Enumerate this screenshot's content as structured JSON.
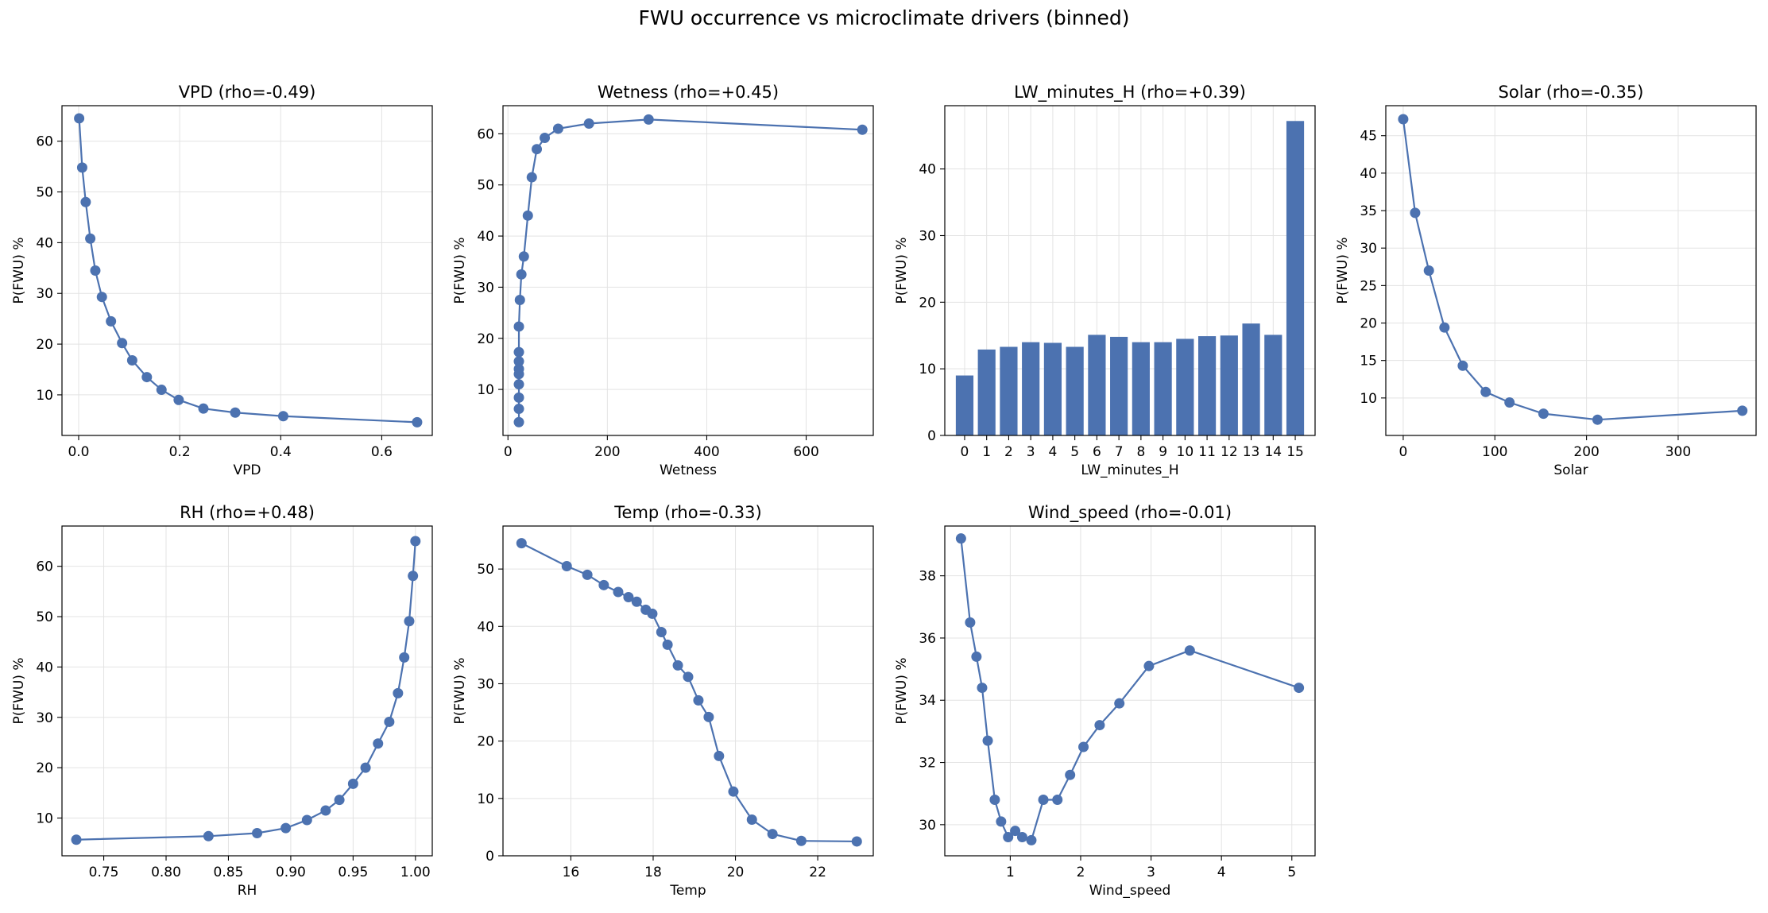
{
  "figure_title": "FWU occurrence vs microclimate drivers (binned)",
  "colors": {
    "series": "#4c72b0",
    "grid": "#e3e3e3",
    "axis": "#000000"
  },
  "chart_data": [
    {
      "type": "line",
      "title": "VPD (rho=-0.49)",
      "xlabel": "VPD",
      "ylabel": "P(FWU) %",
      "xlim": [
        -0.033,
        0.7
      ],
      "ylim": [
        2.0,
        67.0
      ],
      "xticks": [
        0.0,
        0.2,
        0.4,
        0.6
      ],
      "xtick_labels": [
        "0.0",
        "0.2",
        "0.4",
        "0.6"
      ],
      "yticks": [
        10,
        20,
        30,
        40,
        50,
        60
      ],
      "ytick_labels": [
        "10",
        "20",
        "30",
        "40",
        "50",
        "60"
      ],
      "grid": true,
      "x": [
        0.001,
        0.007,
        0.014,
        0.023,
        0.033,
        0.046,
        0.064,
        0.086,
        0.106,
        0.135,
        0.164,
        0.198,
        0.247,
        0.31,
        0.405,
        0.67
      ],
      "y": [
        64.5,
        54.8,
        48.0,
        40.8,
        34.5,
        29.3,
        24.5,
        20.2,
        16.8,
        13.5,
        11.0,
        9.0,
        7.3,
        6.5,
        5.8,
        4.6
      ]
    },
    {
      "type": "line",
      "title": "Wetness (rho=+0.45)",
      "xlabel": "Wetness",
      "ylabel": "P(FWU) %",
      "xlim": [
        -10,
        735
      ],
      "ylim": [
        1.0,
        65.5
      ],
      "xticks": [
        0,
        200,
        400,
        600
      ],
      "xtick_labels": [
        "0",
        "200",
        "400",
        "600"
      ],
      "yticks": [
        10,
        20,
        30,
        40,
        50,
        60
      ],
      "ytick_labels": [
        "10",
        "20",
        "30",
        "40",
        "50",
        "60"
      ],
      "grid": true,
      "x": [
        22,
        22,
        22,
        22,
        22,
        22,
        22,
        22,
        22,
        24,
        27,
        32,
        40,
        48,
        58,
        74,
        101,
        163,
        283,
        713
      ],
      "y": [
        3.6,
        6.2,
        8.4,
        11.0,
        13.0,
        14.0,
        15.5,
        17.3,
        22.3,
        27.5,
        32.5,
        36.0,
        44.0,
        51.5,
        57.0,
        59.2,
        61.0,
        62.0,
        62.8,
        60.8
      ]
    },
    {
      "type": "bar",
      "title": "LW_minutes_H (rho=+0.39)",
      "xlabel": "LW_minutes_H",
      "ylabel": "P(FWU) %",
      "xlim": [
        -0.9,
        15.9
      ],
      "ylim": [
        0,
        49.5
      ],
      "categories": [
        "0",
        "1",
        "2",
        "3",
        "4",
        "5",
        "6",
        "7",
        "8",
        "9",
        "10",
        "11",
        "12",
        "13",
        "14",
        "15"
      ],
      "xticks": [
        0,
        1,
        2,
        3,
        4,
        5,
        6,
        7,
        8,
        9,
        10,
        11,
        12,
        13,
        14,
        15
      ],
      "xtick_labels": [
        "0",
        "1",
        "2",
        "3",
        "4",
        "5",
        "6",
        "7",
        "8",
        "9",
        "10",
        "11",
        "12",
        "13",
        "14",
        "15"
      ],
      "yticks": [
        0,
        10,
        20,
        30,
        40
      ],
      "ytick_labels": [
        "0",
        "10",
        "20",
        "30",
        "40"
      ],
      "grid": true,
      "values": [
        9.0,
        12.9,
        13.3,
        14.0,
        13.9,
        13.3,
        15.1,
        14.8,
        14.0,
        14.0,
        14.5,
        14.9,
        15.0,
        16.8,
        15.1,
        47.2
      ]
    },
    {
      "type": "line",
      "title": "Solar (rho=-0.35)",
      "xlabel": "Solar",
      "ylabel": "P(FWU) %",
      "xlim": [
        -19,
        385
      ],
      "ylim": [
        5.0,
        49.0
      ],
      "xticks": [
        0,
        100,
        200,
        300
      ],
      "xtick_labels": [
        "0",
        "100",
        "200",
        "300"
      ],
      "yticks": [
        10,
        15,
        20,
        25,
        30,
        35,
        40,
        45
      ],
      "ytick_labels": [
        "10",
        "15",
        "20",
        "25",
        "30",
        "35",
        "40",
        "45"
      ],
      "grid": true,
      "x": [
        0,
        13,
        28,
        45,
        65,
        90,
        116,
        153,
        212,
        370
      ],
      "y": [
        47.2,
        34.7,
        27.0,
        19.4,
        14.3,
        10.8,
        9.4,
        7.9,
        7.1,
        8.3
      ]
    },
    {
      "type": "line",
      "title": "RH (rho=+0.48)",
      "xlabel": "RH",
      "ylabel": "P(FWU) %",
      "xlim": [
        0.7165,
        1.0135
      ],
      "ylim": [
        2.5,
        68.0
      ],
      "xticks": [
        0.75,
        0.8,
        0.85,
        0.9,
        0.95,
        1.0
      ],
      "xtick_labels": [
        "0.75",
        "0.80",
        "0.85",
        "0.90",
        "0.95",
        "1.00"
      ],
      "yticks": [
        10,
        20,
        30,
        40,
        50,
        60
      ],
      "ytick_labels": [
        "10",
        "20",
        "30",
        "40",
        "50",
        "60"
      ],
      "grid": true,
      "x": [
        0.728,
        0.834,
        0.873,
        0.896,
        0.913,
        0.928,
        0.939,
        0.95,
        0.96,
        0.97,
        0.979,
        0.986,
        0.991,
        0.995,
        0.998,
        1.0
      ],
      "y": [
        5.7,
        6.4,
        7.0,
        8.0,
        9.6,
        11.5,
        13.6,
        16.8,
        20.0,
        24.8,
        29.1,
        34.8,
        41.9,
        49.1,
        58.1,
        65.0
      ]
    },
    {
      "type": "line",
      "title": "Temp (rho=-0.33)",
      "xlabel": "Temp",
      "ylabel": "P(FWU) %",
      "xlim": [
        14.35,
        23.35
      ],
      "ylim": [
        0,
        57.5
      ],
      "xticks": [
        16,
        18,
        20,
        22
      ],
      "xtick_labels": [
        "16",
        "18",
        "20",
        "22"
      ],
      "yticks": [
        0,
        10,
        20,
        30,
        40,
        50
      ],
      "ytick_labels": [
        "0",
        "10",
        "20",
        "30",
        "40",
        "50"
      ],
      "grid": true,
      "x": [
        14.8,
        15.9,
        16.4,
        16.8,
        17.15,
        17.4,
        17.6,
        17.82,
        17.98,
        18.2,
        18.35,
        18.6,
        18.85,
        19.1,
        19.35,
        19.6,
        19.95,
        20.4,
        20.9,
        21.6,
        22.95
      ],
      "y": [
        54.5,
        50.5,
        49.0,
        47.2,
        46.0,
        45.1,
        44.3,
        42.9,
        42.2,
        39.0,
        36.8,
        33.2,
        31.2,
        27.1,
        24.2,
        17.4,
        11.2,
        6.3,
        3.8,
        2.6,
        2.5
      ]
    },
    {
      "type": "line",
      "title": "Wind_speed (rho=-0.01)",
      "xlabel": "Wind_speed",
      "ylabel": "P(FWU) %",
      "xlim": [
        0.07,
        5.33
      ],
      "ylim": [
        29.0,
        39.6
      ],
      "xticks": [
        1,
        2,
        3,
        4,
        5
      ],
      "xtick_labels": [
        "1",
        "2",
        "3",
        "4",
        "5"
      ],
      "yticks": [
        30,
        32,
        34,
        36,
        38
      ],
      "ytick_labels": [
        "30",
        "32",
        "34",
        "36",
        "38"
      ],
      "grid": true,
      "x": [
        0.3,
        0.43,
        0.52,
        0.6,
        0.68,
        0.78,
        0.87,
        0.97,
        1.07,
        1.17,
        1.3,
        1.47,
        1.67,
        1.85,
        2.04,
        2.27,
        2.55,
        2.97,
        3.55,
        5.1
      ],
      "y": [
        39.2,
        36.5,
        35.4,
        34.4,
        32.7,
        30.8,
        30.1,
        29.6,
        29.8,
        29.6,
        29.5,
        30.8,
        30.8,
        31.6,
        32.5,
        33.2,
        33.9,
        35.1,
        35.6,
        34.4
      ]
    }
  ]
}
